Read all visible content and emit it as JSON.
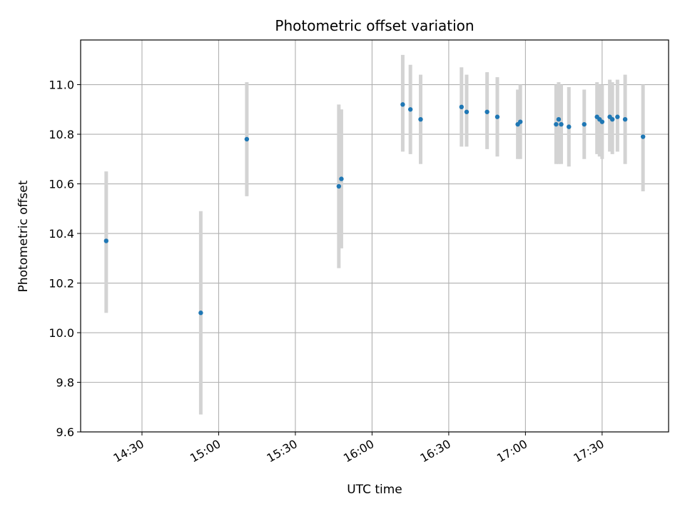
{
  "chart_data": {
    "type": "scatter",
    "title": "Photometric offset variation",
    "xlabel": "UTC time",
    "ylabel": "Photometric offset",
    "xlim": [
      "14:06",
      "17:56"
    ],
    "ylim": [
      9.6,
      11.18
    ],
    "x_ticks": [
      "14:30",
      "15:00",
      "15:30",
      "16:00",
      "16:30",
      "17:00",
      "17:30"
    ],
    "y_ticks": [
      9.6,
      9.8,
      10.0,
      10.2,
      10.4,
      10.6,
      10.8,
      11.0
    ],
    "y_tick_labels": [
      "9.6",
      "9.8",
      "10.0",
      "10.2",
      "10.4",
      "10.6",
      "10.8",
      "11.0"
    ],
    "grid": true,
    "marker_color": "#1f77b4",
    "errorbar_color": "#d3d3d3",
    "points": [
      {
        "t": "14:16",
        "y": 10.37,
        "lo": 10.08,
        "hi": 10.65
      },
      {
        "t": "14:53",
        "y": 10.08,
        "lo": 9.67,
        "hi": 10.49
      },
      {
        "t": "15:11",
        "y": 10.78,
        "lo": 10.55,
        "hi": 11.01
      },
      {
        "t": "15:47",
        "y": 10.59,
        "lo": 10.26,
        "hi": 10.92
      },
      {
        "t": "15:48",
        "y": 10.62,
        "lo": 10.34,
        "hi": 10.9
      },
      {
        "t": "16:12",
        "y": 10.92,
        "lo": 10.73,
        "hi": 11.12
      },
      {
        "t": "16:15",
        "y": 10.9,
        "lo": 10.72,
        "hi": 11.08
      },
      {
        "t": "16:19",
        "y": 10.86,
        "lo": 10.68,
        "hi": 11.04
      },
      {
        "t": "16:35",
        "y": 10.91,
        "lo": 10.75,
        "hi": 11.07
      },
      {
        "t": "16:37",
        "y": 10.89,
        "lo": 10.75,
        "hi": 11.04
      },
      {
        "t": "16:45",
        "y": 10.89,
        "lo": 10.74,
        "hi": 11.05
      },
      {
        "t": "16:49",
        "y": 10.87,
        "lo": 10.71,
        "hi": 11.03
      },
      {
        "t": "16:57",
        "y": 10.84,
        "lo": 10.7,
        "hi": 10.98
      },
      {
        "t": "16:58",
        "y": 10.85,
        "lo": 10.7,
        "hi": 11.0
      },
      {
        "t": "17:12",
        "y": 10.84,
        "lo": 10.68,
        "hi": 11.0
      },
      {
        "t": "17:13",
        "y": 10.86,
        "lo": 10.68,
        "hi": 11.01
      },
      {
        "t": "17:14",
        "y": 10.84,
        "lo": 10.68,
        "hi": 11.0
      },
      {
        "t": "17:17",
        "y": 10.83,
        "lo": 10.67,
        "hi": 10.99
      },
      {
        "t": "17:23",
        "y": 10.84,
        "lo": 10.7,
        "hi": 10.98
      },
      {
        "t": "17:28",
        "y": 10.87,
        "lo": 10.72,
        "hi": 11.01
      },
      {
        "t": "17:29",
        "y": 10.86,
        "lo": 10.71,
        "hi": 11.0
      },
      {
        "t": "17:30",
        "y": 10.85,
        "lo": 10.7,
        "hi": 11.0
      },
      {
        "t": "17:33",
        "y": 10.87,
        "lo": 10.73,
        "hi": 11.02
      },
      {
        "t": "17:34",
        "y": 10.86,
        "lo": 10.72,
        "hi": 11.01
      },
      {
        "t": "17:36",
        "y": 10.87,
        "lo": 10.73,
        "hi": 11.02
      },
      {
        "t": "17:39",
        "y": 10.86,
        "lo": 10.68,
        "hi": 11.04
      },
      {
        "t": "17:46",
        "y": 10.79,
        "lo": 10.57,
        "hi": 11.0
      }
    ]
  }
}
